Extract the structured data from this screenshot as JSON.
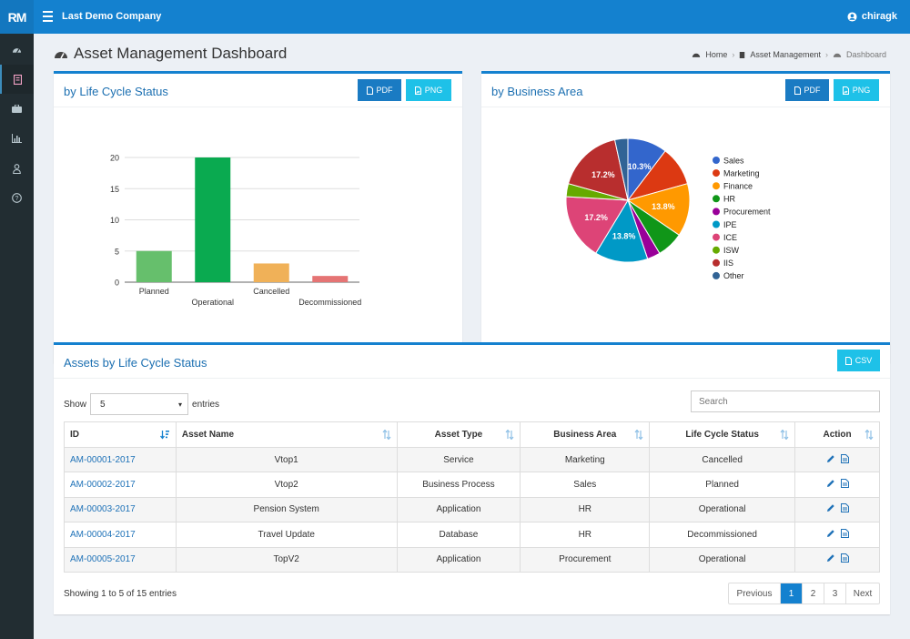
{
  "app": {
    "logo": "RM",
    "company": "Last Demo Company",
    "user": "chiragk"
  },
  "sidebar": {
    "icons": [
      "dashboard-icon",
      "asset-icon",
      "briefcase-icon",
      "bar-chart-icon",
      "user-icon",
      "help-icon"
    ],
    "active_index": 1
  },
  "page": {
    "title": "Asset Management Dashboard",
    "breadcrumb": [
      "Home",
      "Asset Management",
      "Dashboard"
    ]
  },
  "panel_lifecycle": {
    "title": "by Life Cycle Status",
    "pdf_label": "PDF",
    "png_label": "PNG"
  },
  "panel_business": {
    "title": "by Business Area",
    "pdf_label": "PDF",
    "png_label": "PNG"
  },
  "colors": {
    "primary": "#1481cf",
    "png_button": "#1ec1e8",
    "link": "#1f72b8"
  },
  "chart_data": [
    {
      "type": "bar",
      "categories": [
        "Planned",
        "Operational",
        "Cancelled",
        "Decommissioned"
      ],
      "values": [
        5,
        20,
        3,
        1
      ],
      "colors": [
        "#66bf6c",
        "#0aaa50",
        "#f0b158",
        "#e57474"
      ],
      "ylim": [
        0,
        20
      ],
      "yticks": [
        0,
        5,
        10,
        15,
        20
      ],
      "grid": true
    },
    {
      "type": "pie",
      "categories": [
        "Sales",
        "Marketing",
        "Finance",
        "HR",
        "Procurement",
        "IPE",
        "ICE",
        "ISW",
        "IIS",
        "Other"
      ],
      "values": [
        10.3,
        10.3,
        13.8,
        6.9,
        3.4,
        13.8,
        17.2,
        3.4,
        17.2,
        3.4
      ],
      "labels": [
        "10.3%",
        "",
        "13.8%",
        "",
        "",
        "13.8%",
        "17.2%",
        "",
        "17.2%",
        ""
      ],
      "colors": [
        "#3366cc",
        "#dc3912",
        "#ff9900",
        "#109618",
        "#990099",
        "#0099c6",
        "#dd4477",
        "#66aa00",
        "#b82e2e",
        "#316395"
      ],
      "legend_position": "right"
    }
  ],
  "table_panel": {
    "title": "Assets by Life Cycle Status",
    "csv_label": "CSV",
    "show_label": "Show",
    "page_size": "5",
    "entries_label": "entries",
    "search_placeholder": "Search",
    "columns": [
      "ID",
      "Asset Name",
      "Asset Type",
      "Business Area",
      "Life Cycle Status",
      "Action"
    ],
    "rows": [
      [
        "AM-00001-2017",
        "Vtop1",
        "Service",
        "Marketing",
        "Cancelled"
      ],
      [
        "AM-00002-2017",
        "Vtop2",
        "Business Process",
        "Sales",
        "Planned"
      ],
      [
        "AM-00003-2017",
        "Pension System",
        "Application",
        "HR",
        "Operational"
      ],
      [
        "AM-00004-2017",
        "Travel Update",
        "Database",
        "HR",
        "Decommissioned"
      ],
      [
        "AM-00005-2017",
        "TopV2",
        "Application",
        "Procurement",
        "Operational"
      ]
    ],
    "info": "Showing 1 to  5  of 15 entries",
    "pagination": {
      "previous": "Previous",
      "pages": [
        "1",
        "2",
        "3"
      ],
      "current": "1",
      "next": "Next"
    }
  }
}
